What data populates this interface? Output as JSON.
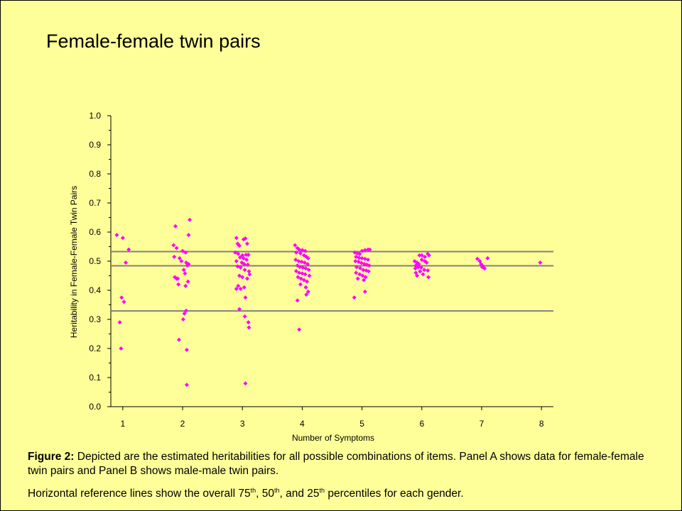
{
  "slide": {
    "title": "Female-female twin pairs",
    "caption_label": "Figure 2:",
    "caption_text": "Depicted are the estimated heritabilities for all possible combinations of items. Panel A shows data for female-female twin pairs and Panel B shows male-male twin pairs.",
    "note_prefix": "Horizontal reference lines show the overall 75",
    "note_sup1": "th",
    "note_mid1": ", 50",
    "note_sup2": "th",
    "note_mid2": ", and 25",
    "note_sup3": "th",
    "note_suffix": " percentiles for each gender.",
    "background_color": "#ffff99"
  },
  "chart_data": {
    "type": "scatter",
    "xlabel": "Number of Symptoms",
    "ylabel": "Heritability in Female-Female Twin Pairs",
    "x_ticks": [
      "1",
      "2",
      "3",
      "4",
      "5",
      "6",
      "7",
      "8"
    ],
    "y_ticks": [
      "0.0",
      "0.1",
      "0.2",
      "0.3",
      "0.4",
      "0.5",
      "0.6",
      "0.7",
      "0.8",
      "0.9",
      "1.0"
    ],
    "xlim": [
      0.8,
      8.2
    ],
    "ylim": [
      0,
      1.0
    ],
    "grid": false,
    "point_color": "#ff00ff",
    "reference_line_color": "#808080",
    "reference_lines": [
      {
        "name": "75th percentile",
        "value": 0.533
      },
      {
        "name": "50th percentile",
        "value": 0.484
      },
      {
        "name": "25th percentile",
        "value": 0.329
      }
    ],
    "points": [
      [
        0.9,
        0.59
      ],
      [
        1.0,
        0.58
      ],
      [
        1.1,
        0.54
      ],
      [
        1.05,
        0.495
      ],
      [
        0.98,
        0.375
      ],
      [
        1.02,
        0.36
      ],
      [
        0.95,
        0.29
      ],
      [
        0.97,
        0.2
      ],
      [
        1.88,
        0.62
      ],
      [
        1.85,
        0.555
      ],
      [
        1.9,
        0.545
      ],
      [
        2.0,
        0.535
      ],
      [
        2.05,
        0.53
      ],
      [
        2.1,
        0.59
      ],
      [
        2.12,
        0.642
      ],
      [
        1.95,
        0.51
      ],
      [
        1.98,
        0.5
      ],
      [
        2.06,
        0.495
      ],
      [
        2.1,
        0.49
      ],
      [
        2.08,
        0.485
      ],
      [
        1.86,
        0.515
      ],
      [
        2.02,
        0.47
      ],
      [
        2.04,
        0.458
      ],
      [
        1.87,
        0.445
      ],
      [
        1.9,
        0.44
      ],
      [
        1.92,
        0.44
      ],
      [
        2.09,
        0.43
      ],
      [
        1.93,
        0.42
      ],
      [
        2.05,
        0.415
      ],
      [
        2.06,
        0.33
      ],
      [
        2.03,
        0.32
      ],
      [
        2.01,
        0.3
      ],
      [
        1.94,
        0.23
      ],
      [
        2.07,
        0.195
      ],
      [
        2.07,
        0.075
      ],
      [
        2.9,
        0.58
      ],
      [
        3.02,
        0.575
      ],
      [
        3.05,
        0.578
      ],
      [
        2.92,
        0.56
      ],
      [
        2.95,
        0.553
      ],
      [
        3.08,
        0.56
      ],
      [
        2.88,
        0.53
      ],
      [
        2.93,
        0.525
      ],
      [
        3.0,
        0.52
      ],
      [
        3.06,
        0.522
      ],
      [
        3.1,
        0.522
      ],
      [
        2.96,
        0.513
      ],
      [
        3.02,
        0.51
      ],
      [
        3.07,
        0.505
      ],
      [
        2.9,
        0.5
      ],
      [
        2.99,
        0.495
      ],
      [
        3.03,
        0.49
      ],
      [
        3.09,
        0.488
      ],
      [
        2.92,
        0.482
      ],
      [
        2.97,
        0.478
      ],
      [
        3.04,
        0.47
      ],
      [
        3.11,
        0.465
      ],
      [
        3.12,
        0.455
      ],
      [
        2.95,
        0.45
      ],
      [
        3.0,
        0.445
      ],
      [
        3.08,
        0.44
      ],
      [
        2.93,
        0.415
      ],
      [
        2.9,
        0.405
      ],
      [
        2.97,
        0.405
      ],
      [
        3.03,
        0.41
      ],
      [
        3.05,
        0.375
      ],
      [
        2.95,
        0.335
      ],
      [
        3.04,
        0.31
      ],
      [
        3.1,
        0.29
      ],
      [
        3.11,
        0.272
      ],
      [
        3.05,
        0.08
      ],
      [
        3.88,
        0.555
      ],
      [
        3.92,
        0.545
      ],
      [
        3.95,
        0.54
      ],
      [
        4.0,
        0.538
      ],
      [
        4.05,
        0.535
      ],
      [
        3.9,
        0.53
      ],
      [
        3.97,
        0.527
      ],
      [
        4.03,
        0.52
      ],
      [
        4.07,
        0.515
      ],
      [
        4.1,
        0.51
      ],
      [
        3.89,
        0.505
      ],
      [
        3.94,
        0.5
      ],
      [
        3.99,
        0.498
      ],
      [
        4.04,
        0.495
      ],
      [
        4.09,
        0.49
      ],
      [
        3.92,
        0.485
      ],
      [
        3.96,
        0.48
      ],
      [
        4.01,
        0.478
      ],
      [
        4.06,
        0.475
      ],
      [
        4.11,
        0.47
      ],
      [
        3.9,
        0.466
      ],
      [
        3.95,
        0.46
      ],
      [
        4.0,
        0.458
      ],
      [
        4.05,
        0.455
      ],
      [
        4.12,
        0.45
      ],
      [
        3.93,
        0.445
      ],
      [
        3.98,
        0.44
      ],
      [
        4.03,
        0.435
      ],
      [
        4.08,
        0.43
      ],
      [
        3.97,
        0.42
      ],
      [
        4.06,
        0.41
      ],
      [
        4.1,
        0.395
      ],
      [
        4.07,
        0.385
      ],
      [
        3.92,
        0.365
      ],
      [
        3.95,
        0.265
      ],
      [
        4.88,
        0.53
      ],
      [
        4.92,
        0.527
      ],
      [
        4.96,
        0.525
      ],
      [
        5.0,
        0.535
      ],
      [
        5.05,
        0.538
      ],
      [
        5.1,
        0.54
      ],
      [
        5.13,
        0.54
      ],
      [
        4.9,
        0.515
      ],
      [
        4.95,
        0.512
      ],
      [
        5.0,
        0.51
      ],
      [
        5.05,
        0.508
      ],
      [
        5.1,
        0.505
      ],
      [
        4.89,
        0.5
      ],
      [
        4.94,
        0.498
      ],
      [
        4.99,
        0.494
      ],
      [
        5.04,
        0.49
      ],
      [
        5.08,
        0.488
      ],
      [
        5.12,
        0.485
      ],
      [
        4.91,
        0.48
      ],
      [
        4.97,
        0.476
      ],
      [
        5.02,
        0.47
      ],
      [
        5.07,
        0.468
      ],
      [
        5.11,
        0.465
      ],
      [
        4.9,
        0.46
      ],
      [
        4.96,
        0.455
      ],
      [
        5.01,
        0.45
      ],
      [
        5.06,
        0.445
      ],
      [
        4.93,
        0.44
      ],
      [
        5.03,
        0.435
      ],
      [
        4.87,
        0.375
      ],
      [
        5.05,
        0.395
      ],
      [
        5.88,
        0.5
      ],
      [
        5.92,
        0.495
      ],
      [
        5.96,
        0.52
      ],
      [
        6.0,
        0.52
      ],
      [
        6.05,
        0.515
      ],
      [
        6.1,
        0.525
      ],
      [
        6.12,
        0.52
      ],
      [
        5.9,
        0.485
      ],
      [
        5.95,
        0.49
      ],
      [
        6.0,
        0.505
      ],
      [
        6.05,
        0.5
      ],
      [
        6.08,
        0.495
      ],
      [
        5.89,
        0.475
      ],
      [
        5.94,
        0.48
      ],
      [
        5.99,
        0.478
      ],
      [
        6.04,
        0.47
      ],
      [
        6.1,
        0.468
      ],
      [
        5.9,
        0.46
      ],
      [
        5.97,
        0.465
      ],
      [
        6.02,
        0.455
      ],
      [
        6.11,
        0.445
      ],
      [
        5.92,
        0.45
      ],
      [
        6.93,
        0.508
      ],
      [
        6.97,
        0.5
      ],
      [
        7.1,
        0.51
      ],
      [
        6.99,
        0.49
      ],
      [
        7.02,
        0.483
      ],
      [
        7.05,
        0.475
      ],
      [
        7.01,
        0.48
      ],
      [
        7.98,
        0.495
      ]
    ]
  }
}
